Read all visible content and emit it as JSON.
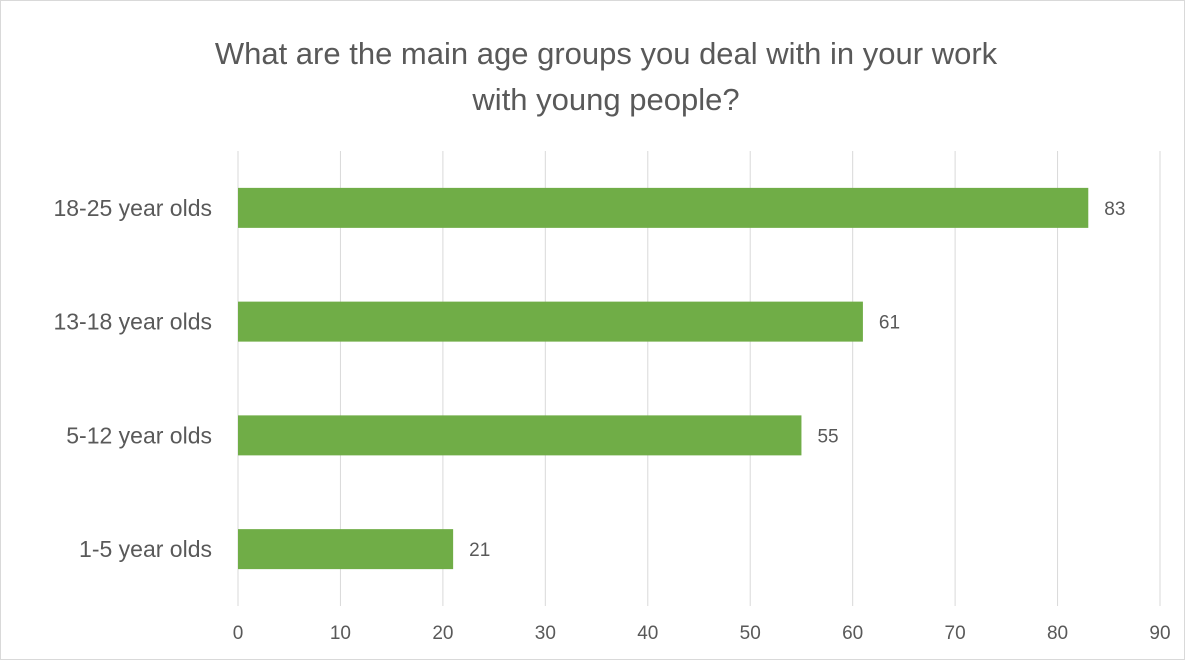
{
  "chart_data": {
    "type": "bar",
    "orientation": "horizontal",
    "title_lines": [
      "What are the main age groups you deal with in your work",
      "with young people?"
    ],
    "categories": [
      "18-25 year olds",
      "13-18 year olds",
      "5-12 year olds",
      "1-5 year olds"
    ],
    "values": [
      83,
      61,
      55,
      21
    ],
    "data_labels": [
      "83",
      "61",
      "55",
      "21"
    ],
    "xlim": [
      0,
      90
    ],
    "x_ticks": [
      0,
      10,
      20,
      30,
      40,
      50,
      60,
      70,
      80,
      90
    ],
    "xlabel": "",
    "ylabel": "",
    "grid": "vertical",
    "legend": "none",
    "bar_color": "#70ad47"
  }
}
